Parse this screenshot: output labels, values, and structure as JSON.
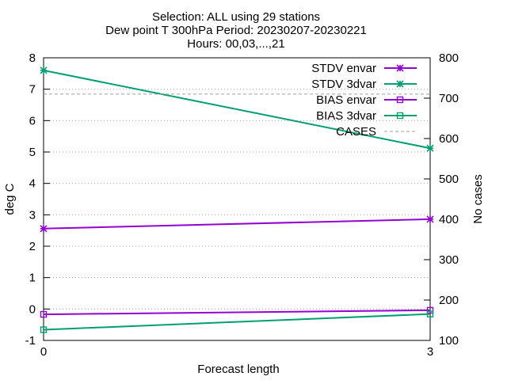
{
  "chart_data": {
    "type": "line",
    "title": [
      "Selection: ALL using    29 stations",
      "Dew point T 300hPa   Period: 20230207-20230221",
      "Hours: 00,03,...,21"
    ],
    "xlabel": "Forecast length",
    "ylabel": "deg C",
    "y2label": "No cases",
    "x": [
      0,
      3
    ],
    "xlim": [
      0,
      3
    ],
    "xticks": [
      "0",
      "3"
    ],
    "ylim": [
      -1,
      8
    ],
    "yticks": [
      "-1",
      "0",
      "1",
      "2",
      "3",
      "4",
      "5",
      "6",
      "7",
      "8"
    ],
    "y2lim": [
      100,
      800
    ],
    "y2ticks": [
      "100",
      "200",
      "300",
      "400",
      "500",
      "600",
      "700",
      "800"
    ],
    "grid": true,
    "legend_position": "top-right",
    "series": [
      {
        "name": "STDV envar",
        "axis": "y",
        "values": [
          2.56,
          2.86
        ],
        "color": "#9400d3",
        "marker": "star"
      },
      {
        "name": "STDV 3dvar",
        "axis": "y",
        "values": [
          7.6,
          5.12
        ],
        "color": "#009e73",
        "marker": "star"
      },
      {
        "name": "BIAS envar",
        "axis": "y",
        "values": [
          -0.17,
          -0.04
        ],
        "color": "#9400d3",
        "marker": "square"
      },
      {
        "name": "BIAS 3dvar",
        "axis": "y",
        "values": [
          -0.66,
          -0.16
        ],
        "color": "#009e73",
        "marker": "square"
      },
      {
        "name": "CASES",
        "axis": "y2",
        "values": [
          710,
          710
        ],
        "color": "#a0a0a0",
        "dashed": true
      }
    ]
  }
}
